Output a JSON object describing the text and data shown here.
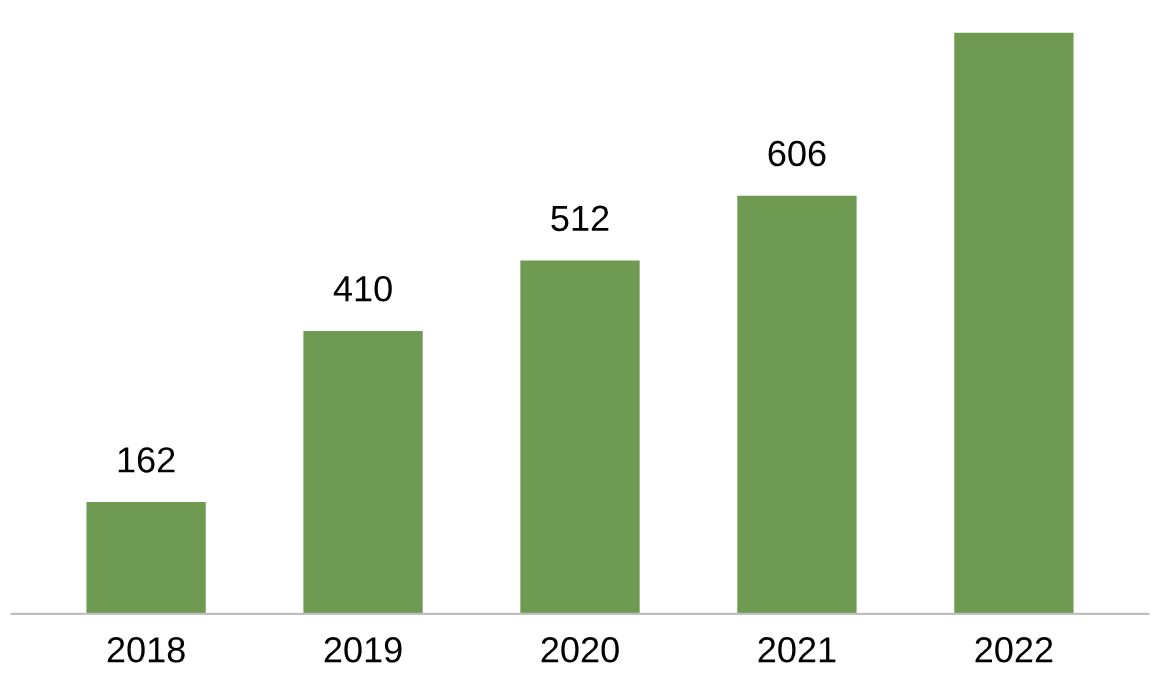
{
  "chart_data": {
    "type": "bar",
    "categories": [
      "2018",
      "2019",
      "2020",
      "2021",
      "2022"
    ],
    "values": [
      162,
      410,
      512,
      606,
      842
    ],
    "value_labels": [
      "162",
      "410",
      "512",
      "606",
      null
    ],
    "color": "#6f9a52",
    "grid": false,
    "legend": false
  }
}
